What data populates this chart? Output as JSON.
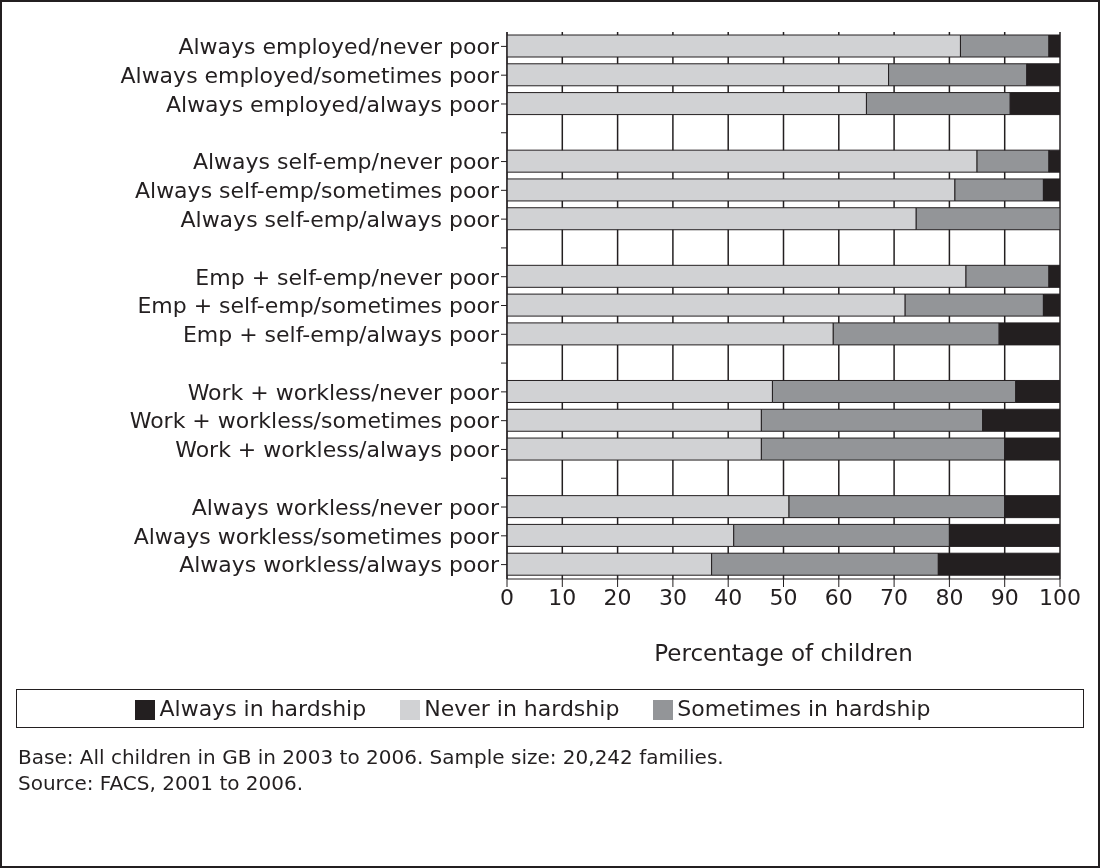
{
  "chart_data": {
    "type": "bar",
    "orientation": "horizontal",
    "stacked": true,
    "categories": [
      "Always employed/never poor",
      "Always employed/sometimes poor",
      "Always employed/always poor",
      null,
      "Always self-emp/never poor",
      "Always self-emp/sometimes poor",
      "Always self-emp/always poor",
      null,
      "Emp + self-emp/never poor",
      "Emp + self-emp/sometimes poor",
      "Emp + self-emp/always poor",
      null,
      "Work + workless/never poor",
      "Work + workless/sometimes poor",
      "Work + workless/always poor",
      null,
      "Always workless/never poor",
      "Always workless/sometimes poor",
      "Always workless/always poor"
    ],
    "series": [
      {
        "name": "Never in hardship",
        "color": "#d1d2d4",
        "values": [
          82,
          69,
          65,
          null,
          85,
          81,
          74,
          null,
          83,
          72,
          59,
          null,
          48,
          46,
          46,
          null,
          51,
          41,
          37
        ]
      },
      {
        "name": "Sometimes in hardship",
        "color": "#939598",
        "values": [
          16,
          25,
          26,
          null,
          13,
          16,
          26,
          null,
          15,
          25,
          30,
          null,
          44,
          40,
          44,
          null,
          39,
          39,
          41
        ]
      },
      {
        "name": "Always in hardship",
        "color": "#231f20",
        "values": [
          2,
          6,
          9,
          null,
          2,
          3,
          0,
          null,
          2,
          3,
          11,
          null,
          8,
          14,
          10,
          null,
          10,
          20,
          22
        ]
      }
    ],
    "xlabel": "Percentage of children",
    "xlim": [
      0,
      100
    ],
    "xticks": [
      0,
      10,
      20,
      30,
      40,
      50,
      60,
      70,
      80,
      90,
      100
    ],
    "grid": "x",
    "legend": "bottom",
    "annotations": [
      "Base: All children in GB in 2003 to 2006. Sample size: 20,242 families.",
      "Source: FACS, 2001 to 2006."
    ]
  }
}
